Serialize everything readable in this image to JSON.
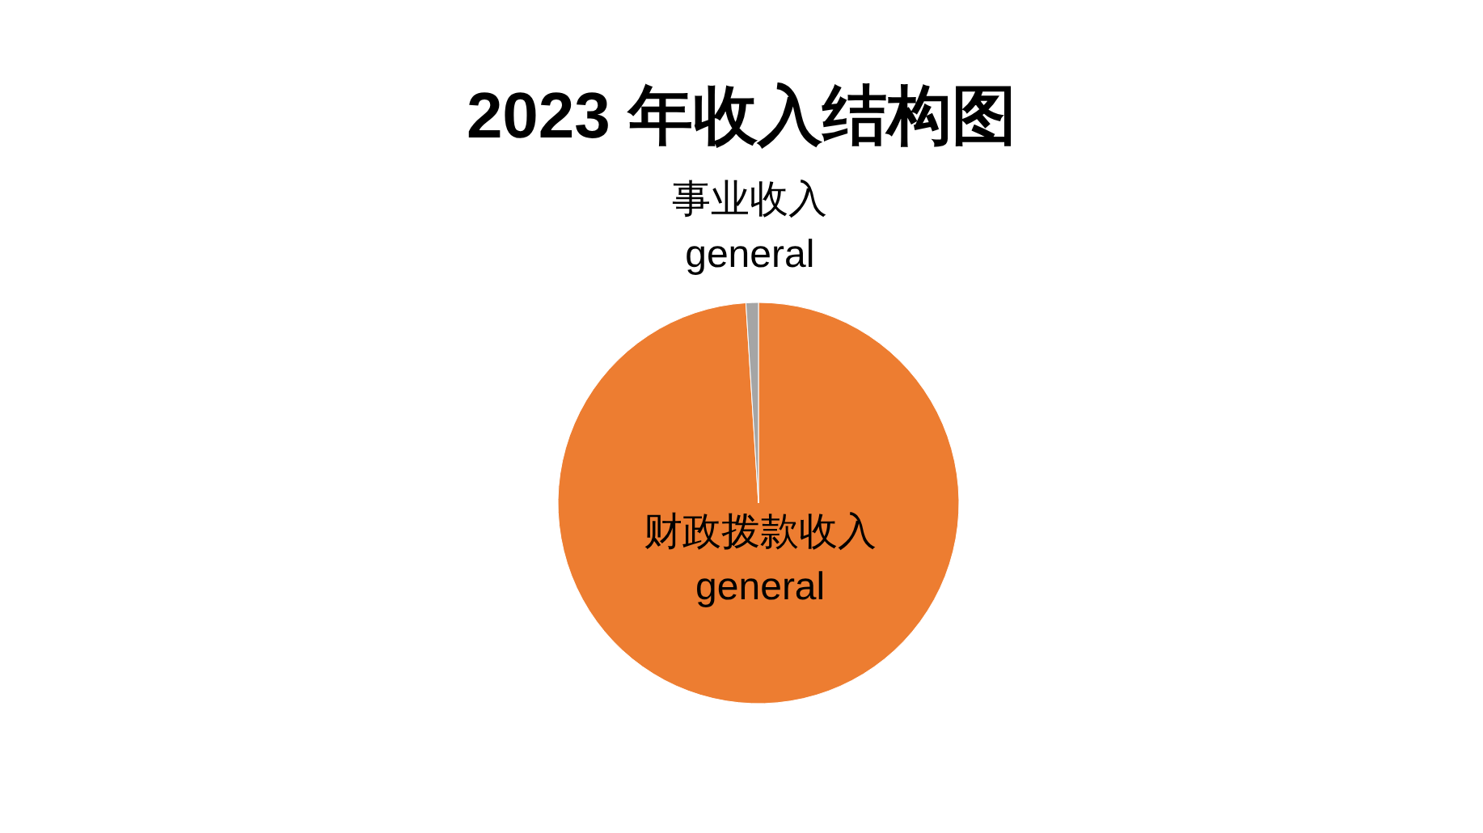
{
  "chart_data": {
    "type": "pie",
    "title": "2023 年收入结构图",
    "categories": [
      "财政拨款收入",
      "事业收入"
    ],
    "values": [
      99,
      1
    ],
    "colors": [
      "#ed7d31",
      "#a5a5a5"
    ],
    "value_labels": [
      "general",
      "general"
    ]
  }
}
